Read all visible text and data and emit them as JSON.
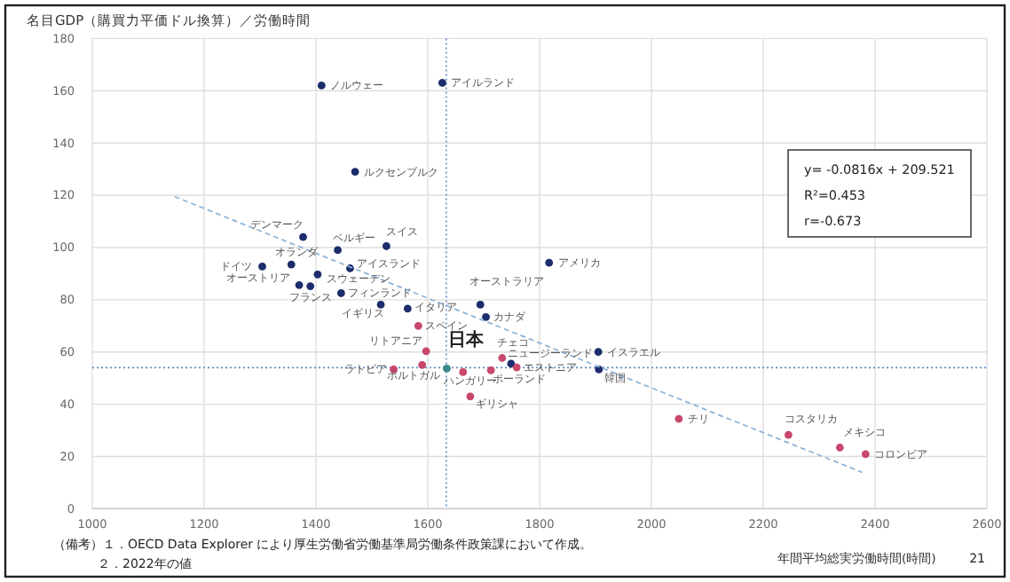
{
  "chart_data": {
    "type": "scatter",
    "ylabel": "名目GDP（購買力平価ドル換算）／労働時間",
    "xlabel": "年間平均総実労働時間(時間)",
    "xlim": [
      1000,
      2600
    ],
    "xticks": [
      1000,
      1200,
      1400,
      1600,
      1800,
      2000,
      2200,
      2400,
      2600
    ],
    "ylim": [
      0,
      180
    ],
    "yticks": [
      0,
      20,
      40,
      60,
      80,
      100,
      120,
      140,
      160,
      180
    ],
    "grid": true,
    "marker": "circle",
    "series": [
      {
        "color": "#1c2c6c",
        "x": [
          1410,
          1626,
          1470,
          1377,
          1439,
          1526,
          1356,
          1304,
          1461,
          1370,
          1403,
          1390,
          1445,
          1516,
          1564,
          1694,
          1704,
          1817,
          1749,
          1905,
          1906
        ],
        "values": [
          162,
          163,
          129,
          104,
          99,
          100.5,
          93.5,
          92.7,
          92,
          85.6,
          89.7,
          85.2,
          82.5,
          78.1,
          76.6,
          78.1,
          73.4,
          94.2,
          55.5,
          60,
          53.3
        ]
      },
      {
        "color": "#c8476a",
        "x": [
          1583,
          1597,
          1539,
          1590,
          1663,
          1676,
          1713,
          1733,
          1759,
          2049,
          2245,
          2337,
          2383
        ],
        "values": [
          70,
          60.3,
          53.3,
          55,
          52.3,
          43,
          53,
          57.7,
          54.1,
          34.4,
          28.3,
          23.4,
          20.9
        ]
      },
      {
        "color": "#3a8a8a",
        "x": [
          1634
        ],
        "values": [
          53.7
        ]
      },
      {
        "type": "line",
        "color": "#8fb4d8",
        "line_style": "dashed",
        "marker": "none",
        "x": [
          1147,
          2377
        ],
        "values": [
          119.5,
          13.9
        ]
      }
    ],
    "ref_lines": [
      {
        "axis": "x",
        "value": 1633,
        "color": "#5b8ac6",
        "line_style": "dotted"
      },
      {
        "axis": "y",
        "value": 54,
        "color": "#5b8ac6",
        "line_style": "dotted"
      }
    ],
    "annotations": [
      {
        "text": "ノルウェー",
        "x": 1410,
        "y": 162
      },
      {
        "text": "アイルランド",
        "x": 1626,
        "y": 163
      },
      {
        "text": "ルクセンブルク",
        "x": 1470,
        "y": 129
      },
      {
        "text": "デンマーク",
        "x": 1377,
        "y": 104
      },
      {
        "text": "ベルギー",
        "x": 1439,
        "y": 99
      },
      {
        "text": "スイス",
        "x": 1526,
        "y": 100.5
      },
      {
        "text": "オランダ",
        "x": 1356,
        "y": 93.5
      },
      {
        "text": "ドイツ",
        "x": 1304,
        "y": 92.7
      },
      {
        "text": "アイスランド",
        "x": 1461,
        "y": 92
      },
      {
        "text": "オーストリア",
        "x": 1370,
        "y": 85.6
      },
      {
        "text": "スウェーデン",
        "x": 1403,
        "y": 89.7
      },
      {
        "text": "フランス",
        "x": 1390,
        "y": 85.2
      },
      {
        "text": "フィンランド",
        "x": 1445,
        "y": 82.5
      },
      {
        "text": "イギリス",
        "x": 1516,
        "y": 78.1
      },
      {
        "text": "イタリア",
        "x": 1564,
        "y": 76.6
      },
      {
        "text": "オーストラリア",
        "x": 1694,
        "y": 78.1
      },
      {
        "text": "カナダ",
        "x": 1704,
        "y": 73.4
      },
      {
        "text": "アメリカ",
        "x": 1817,
        "y": 94.2
      },
      {
        "text": "ニュージーランド",
        "x": 1749,
        "y": 55.5
      },
      {
        "text": "イスラエル",
        "x": 1905,
        "y": 60
      },
      {
        "text": "韓国",
        "x": 1906,
        "y": 53.3
      },
      {
        "text": "スペイン",
        "x": 1583,
        "y": 70
      },
      {
        "text": "リトアニア",
        "x": 1597,
        "y": 60.3
      },
      {
        "text": "ラトビア",
        "x": 1539,
        "y": 53.3
      },
      {
        "text": "ポルトガル",
        "x": 1590,
        "y": 55
      },
      {
        "text": "ハンガリー",
        "x": 1663,
        "y": 52.3
      },
      {
        "text": "ギリシャ",
        "x": 1676,
        "y": 43
      },
      {
        "text": "ポーランド",
        "x": 1713,
        "y": 53
      },
      {
        "text": "チェコ",
        "x": 1733,
        "y": 57.7
      },
      {
        "text": "エストニア",
        "x": 1759,
        "y": 54.1
      },
      {
        "text": "チリ",
        "x": 2049,
        "y": 34.4
      },
      {
        "text": "コスタリカ",
        "x": 2245,
        "y": 28.3
      },
      {
        "text": "メキシコ",
        "x": 2337,
        "y": 23.4
      },
      {
        "text": "コロンビア",
        "x": 2383,
        "y": 20.9
      },
      {
        "text": "日本",
        "x": 1634,
        "y": 53.7
      },
      "y= -0.0816x + 209.521",
      "R²=0.453",
      "r=-0.673",
      "（備考）１．OECD Data Explorer により厚生労働省労働基準局労働条件政策課において作成。",
      "２．2022年の値",
      "21"
    ]
  }
}
